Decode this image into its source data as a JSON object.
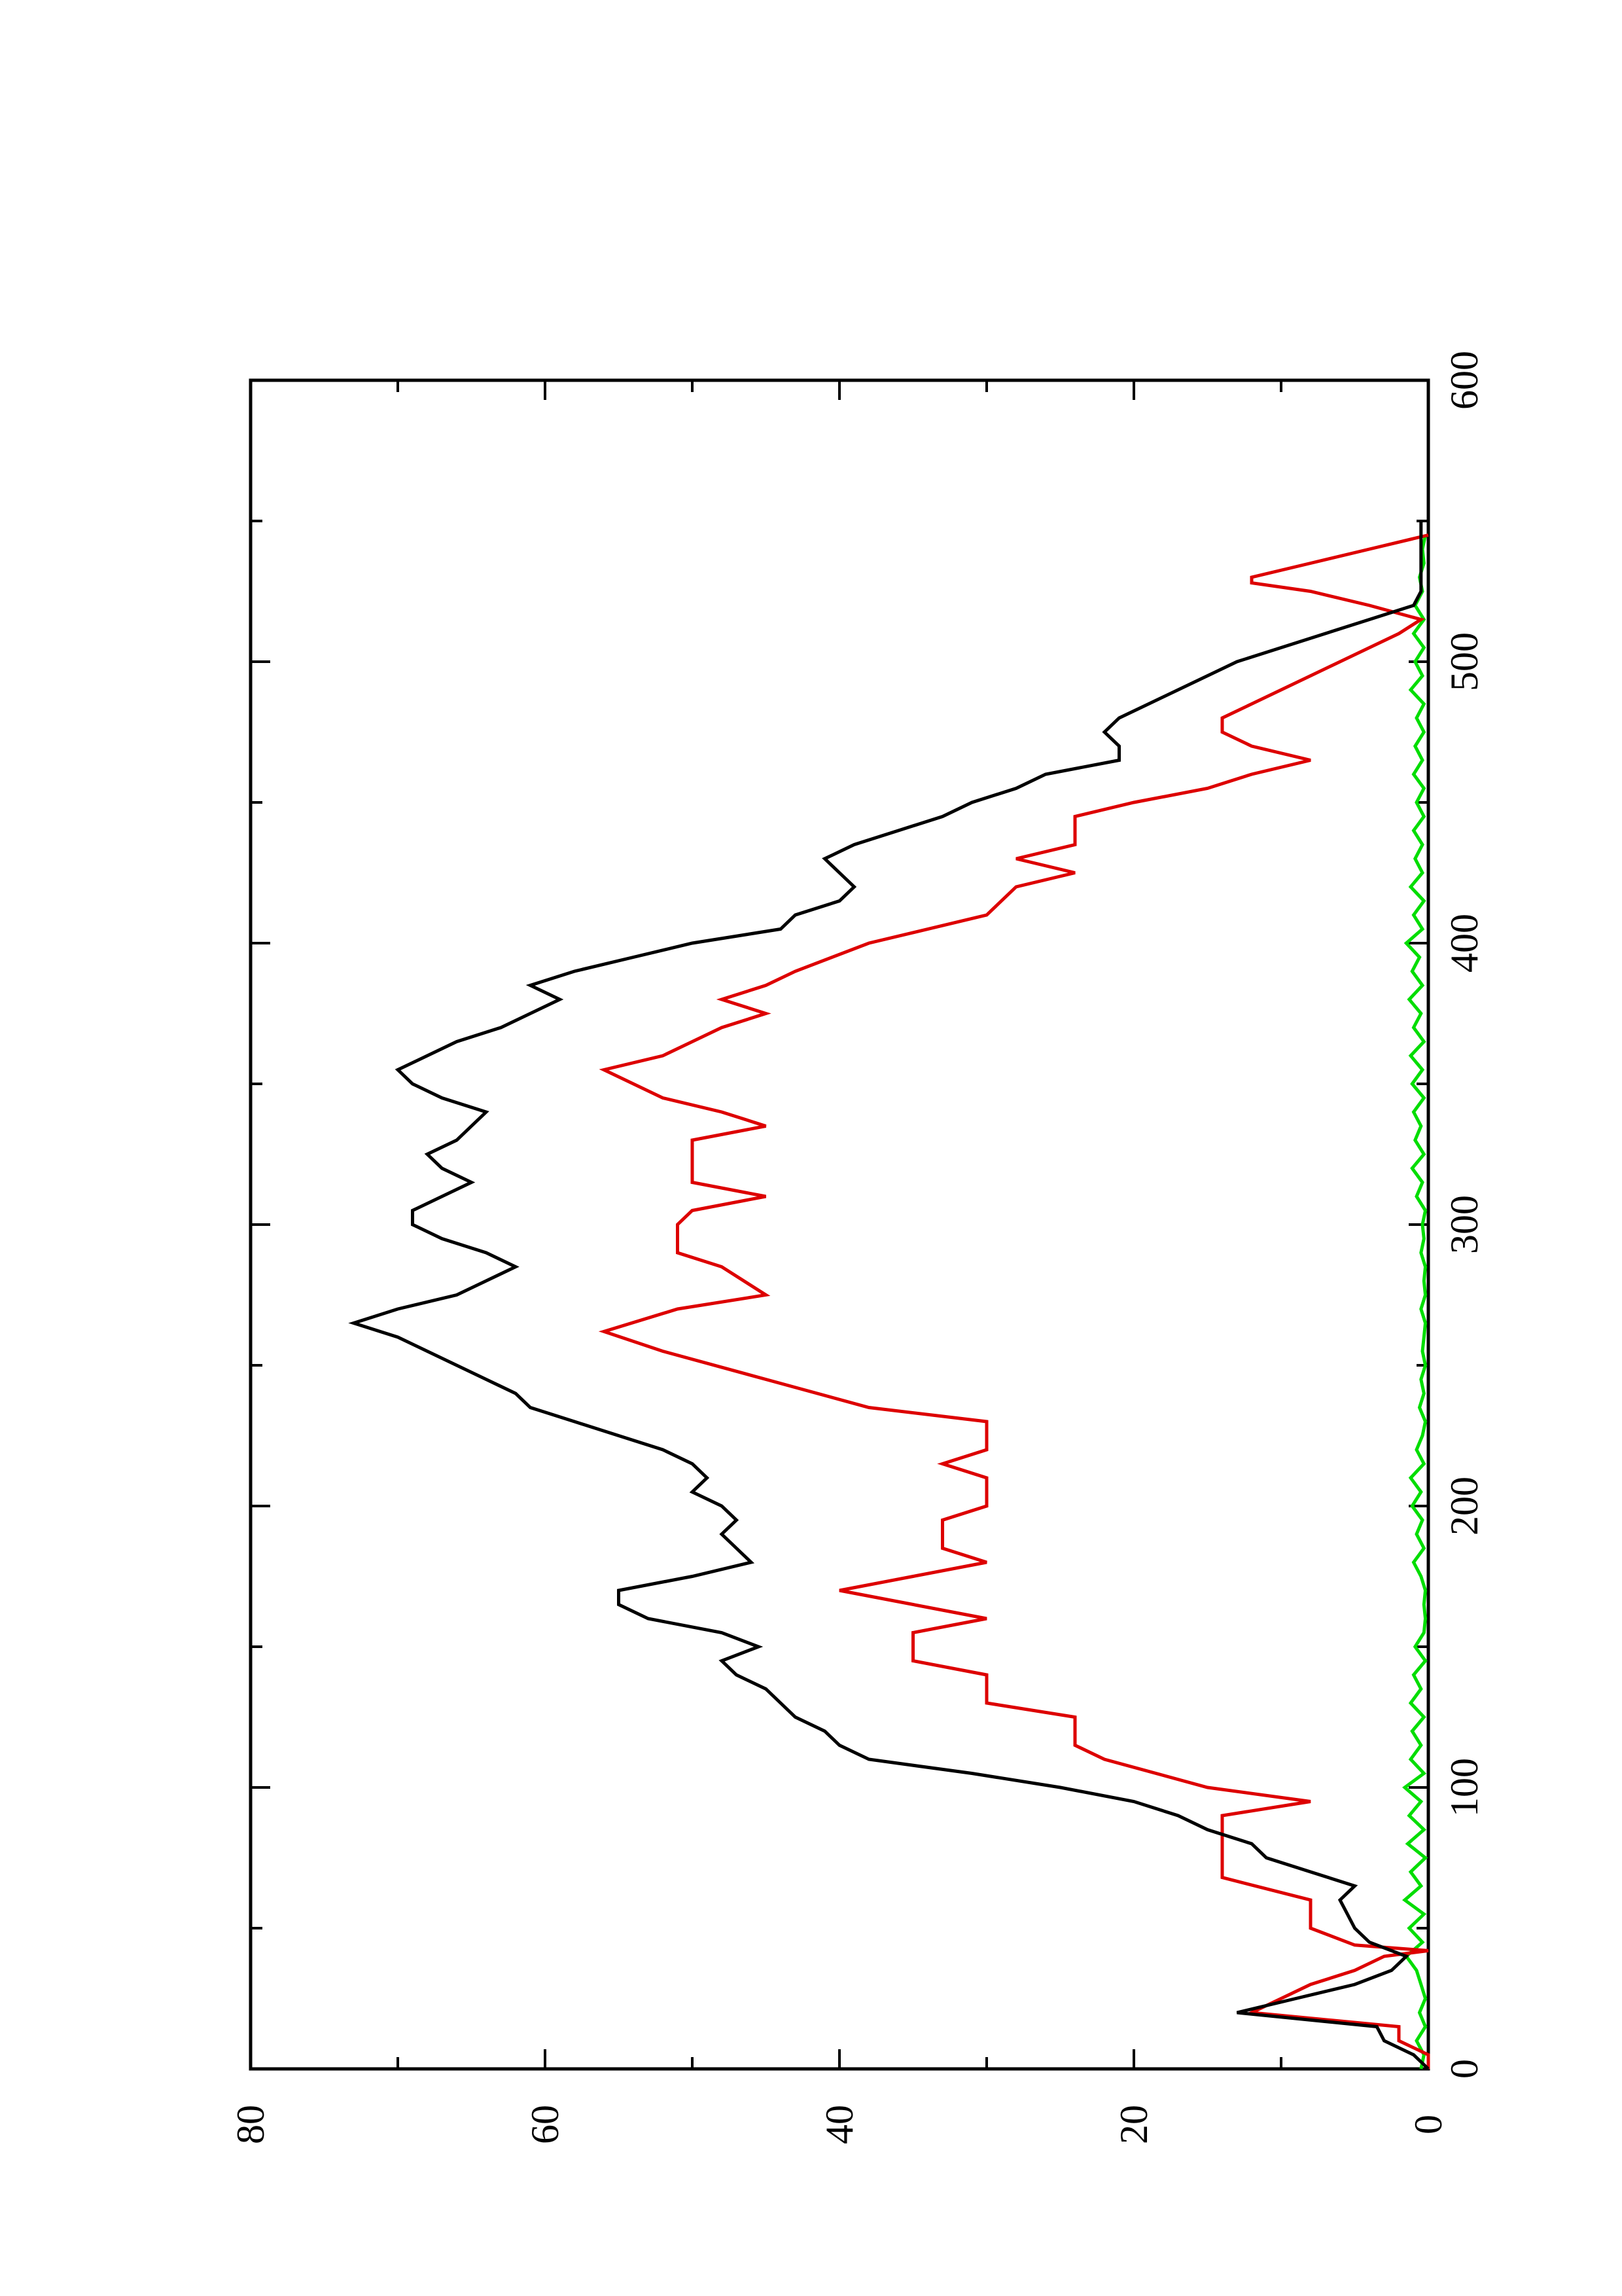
{
  "chart_data": {
    "type": "line",
    "orientation": "rotated-90-ccw",
    "title": "",
    "xlabel": "",
    "ylabel": "",
    "xlim": [
      0,
      600
    ],
    "ylim": [
      0,
      80
    ],
    "x_ticks": [
      "0",
      "100",
      "200",
      "300",
      "400",
      "500",
      "600"
    ],
    "y_ticks": [
      "0",
      "20",
      "40",
      "60",
      "80"
    ],
    "grid": false,
    "legend": "none",
    "series": [
      {
        "color": "#000000",
        "points": [
          [
            0,
            0
          ],
          [
            5,
            1
          ],
          [
            10,
            3
          ],
          [
            15,
            3.5
          ],
          [
            20,
            13
          ],
          [
            25,
            9
          ],
          [
            30,
            5
          ],
          [
            35,
            2.5
          ],
          [
            40,
            1.5
          ],
          [
            45,
            4
          ],
          [
            50,
            5
          ],
          [
            55,
            5.5
          ],
          [
            60,
            6
          ],
          [
            65,
            5
          ],
          [
            70,
            8
          ],
          [
            75,
            11
          ],
          [
            80,
            12
          ],
          [
            85,
            15
          ],
          [
            90,
            17
          ],
          [
            95,
            20
          ],
          [
            100,
            25
          ],
          [
            105,
            31
          ],
          [
            110,
            38
          ],
          [
            115,
            40
          ],
          [
            120,
            41
          ],
          [
            125,
            43
          ],
          [
            130,
            44
          ],
          [
            135,
            45
          ],
          [
            140,
            47
          ],
          [
            145,
            48
          ],
          [
            150,
            45.5
          ],
          [
            155,
            48
          ],
          [
            160,
            53
          ],
          [
            165,
            55
          ],
          [
            170,
            55
          ],
          [
            175,
            50
          ],
          [
            180,
            46
          ],
          [
            185,
            47
          ],
          [
            190,
            48
          ],
          [
            195,
            47
          ],
          [
            200,
            48
          ],
          [
            205,
            50
          ],
          [
            210,
            49
          ],
          [
            215,
            50
          ],
          [
            220,
            52
          ],
          [
            225,
            55
          ],
          [
            230,
            58
          ],
          [
            235,
            61
          ],
          [
            240,
            62
          ],
          [
            245,
            64
          ],
          [
            250,
            66
          ],
          [
            255,
            68
          ],
          [
            260,
            70
          ],
          [
            265,
            73
          ],
          [
            270,
            70
          ],
          [
            275,
            66
          ],
          [
            280,
            64
          ],
          [
            285,
            62
          ],
          [
            290,
            64
          ],
          [
            295,
            67
          ],
          [
            300,
            69
          ],
          [
            305,
            69
          ],
          [
            310,
            67
          ],
          [
            315,
            65
          ],
          [
            320,
            67
          ],
          [
            325,
            68
          ],
          [
            330,
            66
          ],
          [
            335,
            65
          ],
          [
            340,
            64
          ],
          [
            345,
            67
          ],
          [
            350,
            69
          ],
          [
            355,
            70
          ],
          [
            360,
            68
          ],
          [
            365,
            66
          ],
          [
            370,
            63
          ],
          [
            375,
            61
          ],
          [
            380,
            59
          ],
          [
            385,
            61
          ],
          [
            390,
            58
          ],
          [
            395,
            54
          ],
          [
            400,
            50
          ],
          [
            405,
            44
          ],
          [
            410,
            43
          ],
          [
            415,
            40
          ],
          [
            420,
            39
          ],
          [
            425,
            40
          ],
          [
            430,
            41
          ],
          [
            435,
            39
          ],
          [
            440,
            36
          ],
          [
            445,
            33
          ],
          [
            450,
            31
          ],
          [
            455,
            28
          ],
          [
            460,
            26
          ],
          [
            465,
            21
          ],
          [
            470,
            21
          ],
          [
            475,
            22
          ],
          [
            480,
            21
          ],
          [
            485,
            19
          ],
          [
            490,
            17
          ],
          [
            495,
            15
          ],
          [
            500,
            13
          ],
          [
            505,
            10
          ],
          [
            510,
            7
          ],
          [
            515,
            4
          ],
          [
            520,
            1
          ],
          [
            525,
            0.5
          ],
          [
            530,
            0.5
          ],
          [
            535,
            0.5
          ],
          [
            540,
            0.5
          ],
          [
            545,
            0.5
          ],
          [
            550,
            0.5
          ]
        ]
      },
      {
        "color": "#dd0000",
        "points": [
          [
            0,
            0
          ],
          [
            5,
            0
          ],
          [
            10,
            2
          ],
          [
            15,
            2
          ],
          [
            20,
            12
          ],
          [
            25,
            10
          ],
          [
            30,
            8
          ],
          [
            35,
            5
          ],
          [
            40,
            3
          ],
          [
            42,
            0
          ],
          [
            44,
            5
          ],
          [
            50,
            8
          ],
          [
            60,
            8
          ],
          [
            68,
            14
          ],
          [
            75,
            14
          ],
          [
            85,
            14
          ],
          [
            90,
            14
          ],
          [
            95,
            8
          ],
          [
            100,
            15
          ],
          [
            110,
            22
          ],
          [
            115,
            24
          ],
          [
            125,
            24
          ],
          [
            130,
            30
          ],
          [
            140,
            30
          ],
          [
            145,
            35
          ],
          [
            155,
            35
          ],
          [
            160,
            30
          ],
          [
            170,
            40
          ],
          [
            175,
            35
          ],
          [
            180,
            30
          ],
          [
            185,
            33
          ],
          [
            195,
            33
          ],
          [
            200,
            30
          ],
          [
            210,
            30
          ],
          [
            215,
            33
          ],
          [
            220,
            30
          ],
          [
            225,
            30
          ],
          [
            230,
            30
          ],
          [
            235,
            38
          ],
          [
            245,
            45
          ],
          [
            255,
            52
          ],
          [
            262,
            56
          ],
          [
            270,
            51
          ],
          [
            275,
            45
          ],
          [
            285,
            48
          ],
          [
            290,
            51
          ],
          [
            300,
            51
          ],
          [
            305,
            50
          ],
          [
            310,
            45
          ],
          [
            315,
            50
          ],
          [
            325,
            50
          ],
          [
            330,
            50
          ],
          [
            335,
            45
          ],
          [
            340,
            48
          ],
          [
            345,
            52
          ],
          [
            350,
            54
          ],
          [
            355,
            56
          ],
          [
            360,
            52
          ],
          [
            365,
            50
          ],
          [
            370,
            48
          ],
          [
            375,
            45
          ],
          [
            380,
            48
          ],
          [
            385,
            45
          ],
          [
            390,
            43
          ],
          [
            400,
            38
          ],
          [
            410,
            30
          ],
          [
            420,
            28
          ],
          [
            425,
            24
          ],
          [
            430,
            28
          ],
          [
            435,
            24
          ],
          [
            445,
            24
          ],
          [
            450,
            20
          ],
          [
            455,
            15
          ],
          [
            460,
            12
          ],
          [
            465,
            8
          ],
          [
            470,
            12
          ],
          [
            475,
            14
          ],
          [
            480,
            14
          ],
          [
            485,
            12
          ],
          [
            490,
            10
          ],
          [
            495,
            8
          ],
          [
            500,
            6
          ],
          [
            505,
            4
          ],
          [
            510,
            2
          ],
          [
            515,
            0.5
          ],
          [
            520,
            4
          ],
          [
            525,
            8
          ],
          [
            528,
            12
          ],
          [
            530,
            12
          ],
          [
            535,
            8
          ],
          [
            540,
            4
          ],
          [
            545,
            0
          ]
        ]
      },
      {
        "color": "#00dd00",
        "points": [
          [
            0,
            0.5
          ],
          [
            5,
            0.3
          ],
          [
            10,
            0.8
          ],
          [
            15,
            0.2
          ],
          [
            20,
            0.6
          ],
          [
            25,
            0.2
          ],
          [
            30,
            0.5
          ],
          [
            35,
            0.8
          ],
          [
            40,
            1.5
          ],
          [
            45,
            0.4
          ],
          [
            50,
            1.3
          ],
          [
            55,
            0.3
          ],
          [
            60,
            1.6
          ],
          [
            65,
            0.5
          ],
          [
            70,
            1.2
          ],
          [
            75,
            0.2
          ],
          [
            80,
            1.4
          ],
          [
            85,
            0.3
          ],
          [
            90,
            1.3
          ],
          [
            95,
            0.5
          ],
          [
            100,
            1.6
          ],
          [
            105,
            0.3
          ],
          [
            110,
            1.2
          ],
          [
            115,
            0.5
          ],
          [
            120,
            1.1
          ],
          [
            125,
            0.3
          ],
          [
            130,
            1.2
          ],
          [
            135,
            0.5
          ],
          [
            140,
            1.0
          ],
          [
            145,
            0.2
          ],
          [
            150,
            0.9
          ],
          [
            155,
            0.3
          ],
          [
            160,
            0.2
          ],
          [
            165,
            0.3
          ],
          [
            170,
            0.2
          ],
          [
            175,
            0.5
          ],
          [
            180,
            1.0
          ],
          [
            185,
            0.3
          ],
          [
            190,
            0.8
          ],
          [
            195,
            0.4
          ],
          [
            200,
            1.1
          ],
          [
            205,
            0.5
          ],
          [
            210,
            1.2
          ],
          [
            215,
            0.3
          ],
          [
            220,
            0.8
          ],
          [
            225,
            0.4
          ],
          [
            230,
            0.2
          ],
          [
            235,
            0.6
          ],
          [
            240,
            0.3
          ],
          [
            245,
            0.5
          ],
          [
            250,
            0.2
          ],
          [
            255,
            0.4
          ],
          [
            260,
            0.3
          ],
          [
            265,
            0.2
          ],
          [
            270,
            0.5
          ],
          [
            275,
            0.2
          ],
          [
            280,
            0.3
          ],
          [
            285,
            0.2
          ],
          [
            290,
            0.5
          ],
          [
            295,
            0.3
          ],
          [
            300,
            0.4
          ],
          [
            305,
            0.2
          ],
          [
            310,
            0.8
          ],
          [
            315,
            0.4
          ],
          [
            320,
            1.1
          ],
          [
            325,
            0.3
          ],
          [
            330,
            0.9
          ],
          [
            335,
            0.5
          ],
          [
            340,
            1.0
          ],
          [
            345,
            0.3
          ],
          [
            350,
            1.1
          ],
          [
            355,
            0.4
          ],
          [
            360,
            1.2
          ],
          [
            365,
            0.3
          ],
          [
            370,
            1.0
          ],
          [
            375,
            0.5
          ],
          [
            380,
            1.3
          ],
          [
            385,
            0.4
          ],
          [
            390,
            1.1
          ],
          [
            395,
            0.6
          ],
          [
            400,
            1.5
          ],
          [
            405,
            0.4
          ],
          [
            410,
            1.0
          ],
          [
            415,
            0.3
          ],
          [
            420,
            1.2
          ],
          [
            425,
            0.4
          ],
          [
            430,
            0.9
          ],
          [
            435,
            0.4
          ],
          [
            440,
            1.0
          ],
          [
            445,
            0.3
          ],
          [
            450,
            0.8
          ],
          [
            455,
            0.3
          ],
          [
            460,
            1.0
          ],
          [
            465,
            0.4
          ],
          [
            470,
            0.9
          ],
          [
            475,
            0.3
          ],
          [
            480,
            0.8
          ],
          [
            485,
            0.3
          ],
          [
            490,
            1.2
          ],
          [
            495,
            0.4
          ],
          [
            500,
            0.9
          ],
          [
            505,
            0.3
          ],
          [
            510,
            1.0
          ],
          [
            515,
            0.3
          ],
          [
            520,
            0.9
          ],
          [
            525,
            0.4
          ],
          [
            530,
            0.6
          ],
          [
            535,
            0.3
          ],
          [
            540,
            0.4
          ],
          [
            545,
            0.2
          ]
        ]
      }
    ]
  }
}
